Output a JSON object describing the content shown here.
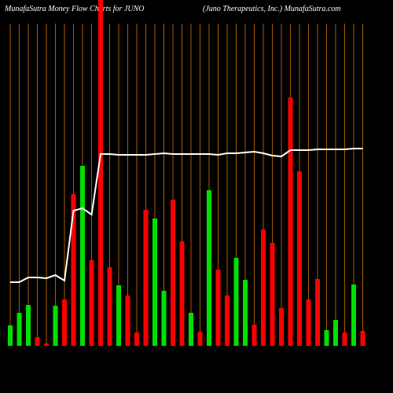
{
  "chart_data": {
    "type": "bar",
    "title": "MunafaSutra  Money Flow  Charts for JUNO",
    "subtitle": "(Juno  Therapeutics,  Inc.) MunafaSutra.com",
    "ylim": [
      0,
      440
    ],
    "values": [
      26,
      42,
      52,
      11,
      3,
      51,
      59,
      193,
      229,
      109,
      440,
      100,
      77,
      64,
      17,
      173,
      162,
      70,
      186,
      133,
      42,
      18,
      198,
      97,
      64,
      112,
      84,
      27,
      148,
      131,
      48,
      316,
      222,
      59,
      85,
      20,
      33,
      17,
      78,
      19
    ],
    "colors": [
      "#00e000",
      "#00e000",
      "#00e000",
      "#ff0000",
      "#ff0000",
      "#00e000",
      "#ff0000",
      "#ff0000",
      "#00e000",
      "#ff0000",
      "#ff0000",
      "#ff0000",
      "#00e000",
      "#ff0000",
      "#ff0000",
      "#ff0000",
      "#00e000",
      "#00e000",
      "#ff0000",
      "#ff0000",
      "#00e000",
      "#ff0000",
      "#00e000",
      "#ff0000",
      "#ff0000",
      "#00e000",
      "#00e000",
      "#ff0000",
      "#ff0000",
      "#ff0000",
      "#ff0000",
      "#ff0000",
      "#ff0000",
      "#ff0000",
      "#ff0000",
      "#00e000",
      "#00e000",
      "#ff0000",
      "#00e000",
      "#ff0000"
    ],
    "line": {
      "color": "#ffffff",
      "values": [
        81,
        81,
        87,
        87,
        86,
        90,
        83,
        172,
        175,
        167,
        244,
        244,
        243,
        243,
        243,
        243,
        244,
        245,
        244,
        244,
        244,
        244,
        244,
        243,
        245,
        245,
        246,
        247,
        245,
        242,
        241,
        249,
        249,
        249,
        250,
        250,
        250,
        250,
        251,
        251
      ]
    },
    "grid_color": "#a65c00"
  }
}
